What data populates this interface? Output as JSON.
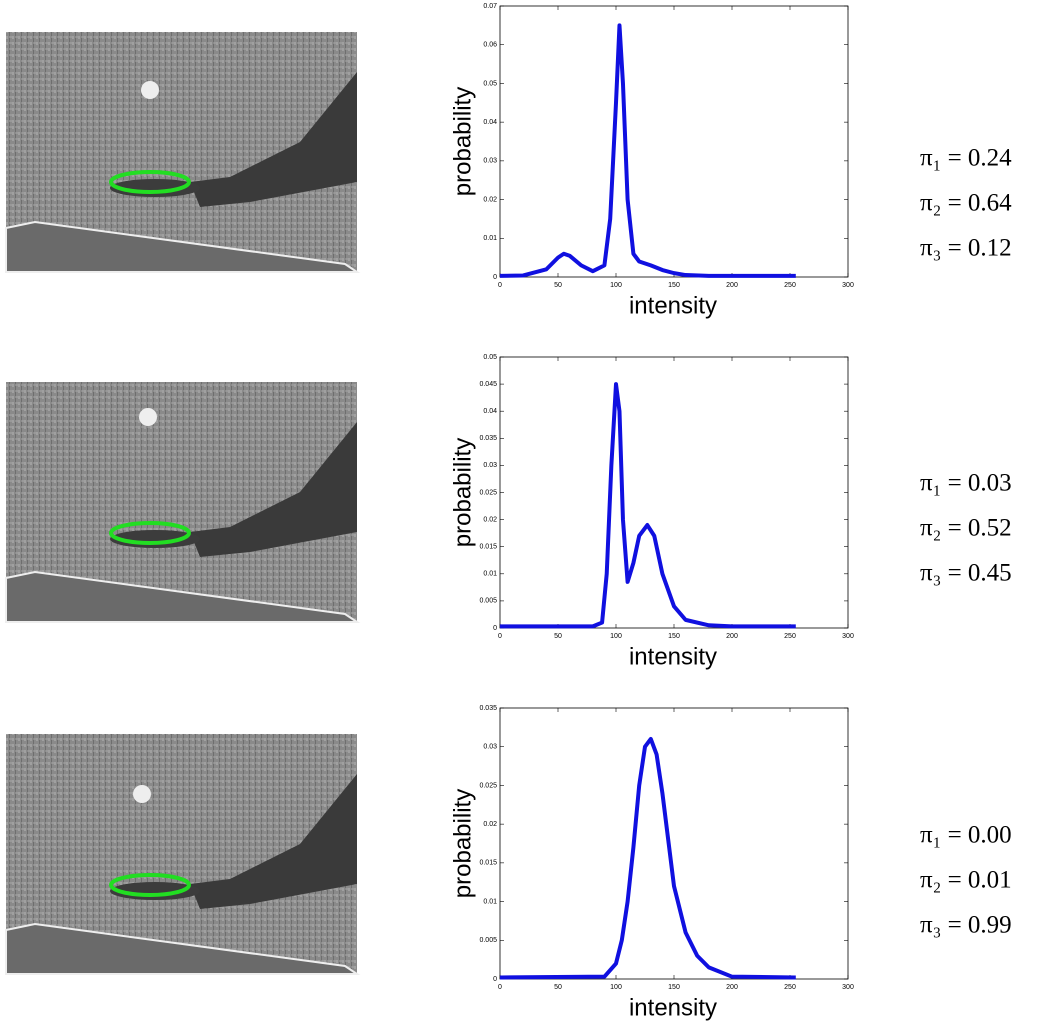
{
  "chart_data": [
    {
      "type": "line",
      "xlabel": "intensity",
      "ylabel": "probability",
      "xlim": [
        0,
        300
      ],
      "xticks": [
        0,
        50,
        100,
        150,
        200,
        250,
        300
      ],
      "ylim": [
        0,
        0.07
      ],
      "yticks": [
        0,
        0.01,
        0.02,
        0.03,
        0.04,
        0.05,
        0.06,
        0.07
      ],
      "color": "#1010e0",
      "x": [
        0,
        20,
        40,
        50,
        55,
        60,
        70,
        80,
        90,
        95,
        100,
        103,
        106,
        110,
        115,
        120,
        130,
        140,
        150,
        160,
        180,
        200,
        255
      ],
      "values": [
        0.0003,
        0.0004,
        0.002,
        0.005,
        0.006,
        0.0055,
        0.003,
        0.0015,
        0.003,
        0.015,
        0.045,
        0.065,
        0.05,
        0.02,
        0.006,
        0.004,
        0.003,
        0.0018,
        0.001,
        0.0005,
        0.0003,
        0.0003,
        0.0003
      ],
      "annotations": [
        "π₁ = 0.24",
        "π₂ = 0.64",
        "π₃ = 0.12"
      ]
    },
    {
      "type": "line",
      "xlabel": "intensity",
      "ylabel": "probability",
      "xlim": [
        0,
        300
      ],
      "xticks": [
        0,
        50,
        100,
        150,
        200,
        250,
        300
      ],
      "ylim": [
        0,
        0.05
      ],
      "yticks": [
        0,
        0.005,
        0.01,
        0.015,
        0.02,
        0.025,
        0.03,
        0.035,
        0.04,
        0.045,
        0.05
      ],
      "color": "#1010e0",
      "x": [
        0,
        80,
        88,
        92,
        96,
        100,
        103,
        106,
        110,
        115,
        120,
        127,
        133,
        140,
        150,
        160,
        180,
        200,
        255
      ],
      "values": [
        0.0003,
        0.0003,
        0.001,
        0.01,
        0.03,
        0.045,
        0.04,
        0.02,
        0.0085,
        0.012,
        0.017,
        0.019,
        0.017,
        0.01,
        0.004,
        0.0015,
        0.0005,
        0.0003,
        0.0003
      ],
      "annotations": [
        "π₁ = 0.03",
        "π₂ = 0.52",
        "π₃ = 0.45"
      ]
    },
    {
      "type": "line",
      "xlabel": "intensity",
      "ylabel": "probability",
      "xlim": [
        0,
        300
      ],
      "xticks": [
        0,
        50,
        100,
        150,
        200,
        250,
        300
      ],
      "ylim": [
        0,
        0.035
      ],
      "yticks": [
        0,
        0.005,
        0.01,
        0.015,
        0.02,
        0.025,
        0.03,
        0.035
      ],
      "color": "#1010e0",
      "x": [
        0,
        90,
        100,
        105,
        110,
        115,
        120,
        125,
        130,
        135,
        140,
        145,
        150,
        160,
        170,
        180,
        200,
        255
      ],
      "values": [
        0.0002,
        0.0003,
        0.002,
        0.005,
        0.01,
        0.017,
        0.025,
        0.03,
        0.031,
        0.029,
        0.024,
        0.018,
        0.012,
        0.006,
        0.003,
        0.0015,
        0.0003,
        0.0002
      ],
      "annotations": [
        "π₁ = 0.00",
        "π₂ = 0.01",
        "π₃ = 0.99"
      ]
    }
  ]
}
